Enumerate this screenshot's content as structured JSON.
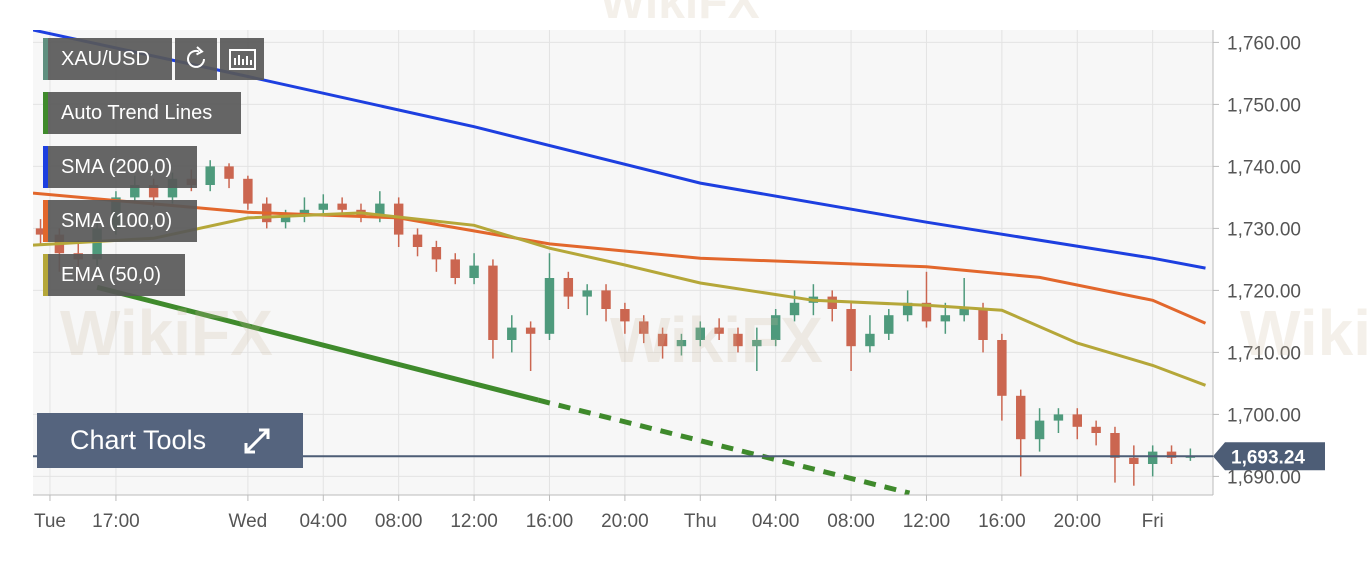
{
  "chart_data": {
    "type": "candlestick",
    "title": "XAU/USD",
    "watermark": "WikiFX",
    "chart_tools_label": "Chart Tools",
    "xlim": [
      -11.4,
      51.2
    ],
    "ylim": [
      1687,
      1762
    ],
    "xticks": [
      {
        "value": -10.5,
        "label": "Tue"
      },
      {
        "value": -7,
        "label": "17:00"
      },
      {
        "value": 0,
        "label": "Wed"
      },
      {
        "value": 4,
        "label": "04:00"
      },
      {
        "value": 8,
        "label": "08:00"
      },
      {
        "value": 12,
        "label": "12:00"
      },
      {
        "value": 16,
        "label": "16:00"
      },
      {
        "value": 20,
        "label": "20:00"
      },
      {
        "value": 24,
        "label": "Thu"
      },
      {
        "value": 28,
        "label": "04:00"
      },
      {
        "value": 32,
        "label": "08:00"
      },
      {
        "value": 36,
        "label": "12:00"
      },
      {
        "value": 40,
        "label": "16:00"
      },
      {
        "value": 44,
        "label": "20:00"
      },
      {
        "value": 48,
        "label": "Fri"
      }
    ],
    "yticks": [
      {
        "value": 1690,
        "label": "1,690.00"
      },
      {
        "value": 1700,
        "label": "1,700.00"
      },
      {
        "value": 1710,
        "label": "1,710.00"
      },
      {
        "value": 1720,
        "label": "1,720.00"
      },
      {
        "value": 1730,
        "label": "1,730.00"
      },
      {
        "value": 1740,
        "label": "1,740.00"
      },
      {
        "value": 1750,
        "label": "1,750.00"
      },
      {
        "value": 1760,
        "label": "1,760.00"
      }
    ],
    "grid": true,
    "up_color": "#4e9a7c",
    "down_color": "#cb6650",
    "x": [
      -11,
      -10,
      -9,
      -8,
      -7,
      -6,
      -5,
      -4,
      -3,
      -2,
      -1,
      0,
      1,
      2,
      3,
      4,
      5,
      6,
      7,
      8,
      9,
      10,
      11,
      12,
      13,
      14,
      15,
      16,
      17,
      18,
      19,
      20,
      21,
      22,
      23,
      24,
      25,
      26,
      27,
      28,
      29,
      30,
      31,
      32,
      33,
      34,
      35,
      36,
      37,
      38,
      39,
      40,
      41,
      42,
      43,
      44,
      45,
      46,
      47,
      48,
      49,
      50
    ],
    "open": [
      1730,
      1729,
      1726,
      1725,
      1730,
      1735,
      1737,
      1735,
      1738,
      1737,
      1740,
      1738,
      1734,
      1731,
      1732,
      1733,
      1734,
      1733,
      1732,
      1734,
      1729,
      1727,
      1725,
      1722,
      1724,
      1712,
      1714,
      1713,
      1722,
      1719,
      1720,
      1717,
      1715,
      1713,
      1711,
      1712,
      1714,
      1713,
      1711,
      1712,
      1716,
      1718,
      1719,
      1717,
      1711,
      1713,
      1716,
      1718,
      1715,
      1716,
      1717,
      1712,
      1703,
      1696,
      1699,
      1700,
      1698,
      1697,
      1693,
      1692,
      1694,
      1693
    ],
    "high": [
      1731.5,
      1730,
      1728,
      1731,
      1736,
      1738.5,
      1738,
      1739,
      1739.5,
      1741,
      1740.5,
      1738.5,
      1735,
      1733,
      1735,
      1735.5,
      1735,
      1734,
      1736,
      1735,
      1730,
      1728,
      1726,
      1726,
      1725,
      1716,
      1715,
      1726,
      1723,
      1721,
      1721,
      1718,
      1716,
      1714,
      1713,
      1715,
      1715.5,
      1714,
      1714,
      1717,
      1720,
      1721,
      1720,
      1718,
      1716,
      1717,
      1720,
      1723,
      1718,
      1722,
      1718,
      1713,
      1704,
      1701,
      1701,
      1701,
      1699,
      1698,
      1695,
      1695,
      1695,
      1694.5
    ],
    "low": [
      1727.5,
      1723,
      1722,
      1724,
      1729,
      1734,
      1733.5,
      1734,
      1736,
      1736,
      1736.5,
      1733,
      1730,
      1730,
      1731,
      1732,
      1732,
      1731,
      1731,
      1727,
      1725.5,
      1723,
      1721,
      1721,
      1709,
      1710,
      1707,
      1712,
      1717,
      1716,
      1715,
      1713,
      1711.5,
      1709,
      1709.5,
      1711,
      1712,
      1710,
      1707,
      1711,
      1715,
      1716,
      1715,
      1707,
      1710,
      1712,
      1715,
      1714,
      1713,
      1715,
      1710,
      1699,
      1690,
      1694,
      1697,
      1696,
      1695,
      1689,
      1688.5,
      1690,
      1692,
      1692.5
    ],
    "close": [
      1729,
      1726,
      1725,
      1730,
      1735,
      1737,
      1735,
      1738,
      1737,
      1740,
      1738,
      1734,
      1731,
      1732,
      1733,
      1734,
      1733,
      1732,
      1734,
      1729,
      1727,
      1725,
      1722,
      1724,
      1712,
      1714,
      1713,
      1722,
      1719,
      1720,
      1717,
      1715,
      1713,
      1711,
      1712,
      1714,
      1713,
      1711,
      1712,
      1716,
      1718,
      1719,
      1717,
      1711,
      1713,
      1716,
      1718,
      1715,
      1716,
      1717,
      1712,
      1703,
      1696,
      1699,
      1700,
      1698,
      1697,
      1693,
      1692,
      1694,
      1693,
      1693.24
    ],
    "lines": [
      {
        "name": "Auto Trend Lines",
        "color": "#3f8a2c",
        "x": [
          -8,
          15.4
        ],
        "values": [
          1720.5,
          1702.3
        ]
      },
      {
        "name": "SMA (200,0)",
        "color": "#1d3fe0",
        "x": [
          -11.4,
          0,
          12,
          24,
          36,
          48,
          50.8
        ],
        "values": [
          1762,
          1754.5,
          1746.4,
          1737.3,
          1731,
          1725.2,
          1723.6
        ]
      },
      {
        "name": "SMA (100,0)",
        "color": "#e2672c",
        "x": [
          -11.4,
          0,
          8,
          16,
          24,
          36,
          42,
          48,
          50.8
        ],
        "values": [
          1735.7,
          1732.6,
          1731.7,
          1727.5,
          1725.2,
          1723.8,
          1722.1,
          1718.4,
          1714.7
        ]
      },
      {
        "name": "EMA (50,0)",
        "color": "#b5a739",
        "x": [
          -11.4,
          -5,
          0,
          6,
          12,
          16,
          20,
          24,
          30,
          36,
          40,
          44,
          48,
          50.8
        ],
        "values": [
          1727.3,
          1728.4,
          1731.7,
          1732.5,
          1730.5,
          1726.8,
          1724.1,
          1721.2,
          1718.4,
          1717.6,
          1716.8,
          1711.5,
          1707.9,
          1704.7
        ]
      }
    ],
    "projection": {
      "color": "#3f8a2c",
      "x": [
        15.4,
        35.1
      ],
      "values": [
        1702.3,
        1687.3
      ]
    },
    "last_price": {
      "value": 1693.24,
      "label": "1,693.24"
    }
  }
}
